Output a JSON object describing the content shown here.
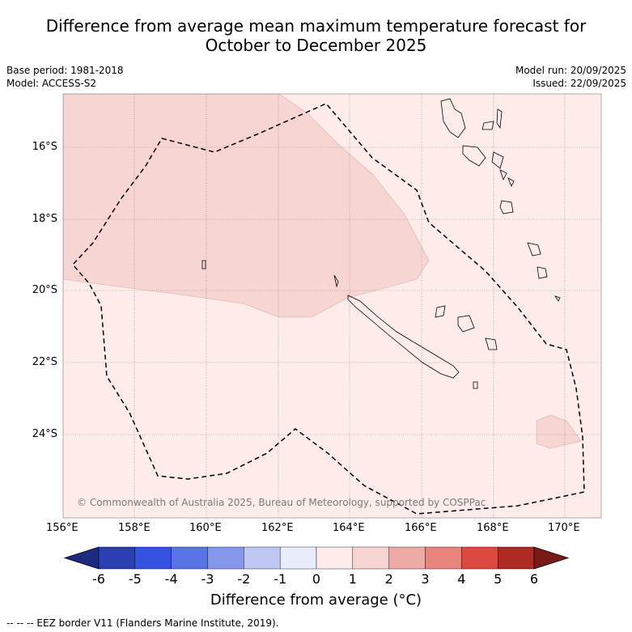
{
  "title_line1": "Difference from average mean maximum temperature forecast for",
  "title_line2": "October to December 2025",
  "base_period": "Base period: 1981-2018",
  "model": "Model: ACCESS-S2",
  "model_run": "Model run: 20/09/2025",
  "issued": "Issued: 22/09/2025",
  "copyright": "© Commonwealth of Australia 2025, Bureau of Meteorology, supported by COSPPac",
  "x_ticks": [
    "156°E",
    "158°E",
    "160°E",
    "162°E",
    "164°E",
    "166°E",
    "168°E",
    "170°E"
  ],
  "y_ticks": [
    "16°S",
    "18°S",
    "20°S",
    "22°S",
    "24°S"
  ],
  "colorbar": {
    "label": "Difference from average (°C)",
    "ticks": [
      "-6",
      "-5",
      "-4",
      "-3",
      "-2",
      "-1",
      "0",
      "1",
      "2",
      "3",
      "4",
      "5",
      "6"
    ],
    "colors": [
      "#2b3fb0",
      "#3452de",
      "#5a74e8",
      "#8597ec",
      "#bfc7f3",
      "#e8ecfb",
      "#fdecea",
      "#f7d5d2",
      "#f0aaa5",
      "#e8857c",
      "#dc4a3f",
      "#b02a24"
    ],
    "under_color": "#1c2b80",
    "over_color": "#7a1a16"
  },
  "legend_note": "-- -- -- EEZ border V11 (Flanders Marine Institute, 2019).",
  "map_colors": {
    "zone_0_1": "#fdecea",
    "zone_1_2": "#f7d5d2",
    "eez_line": "#000000"
  }
}
